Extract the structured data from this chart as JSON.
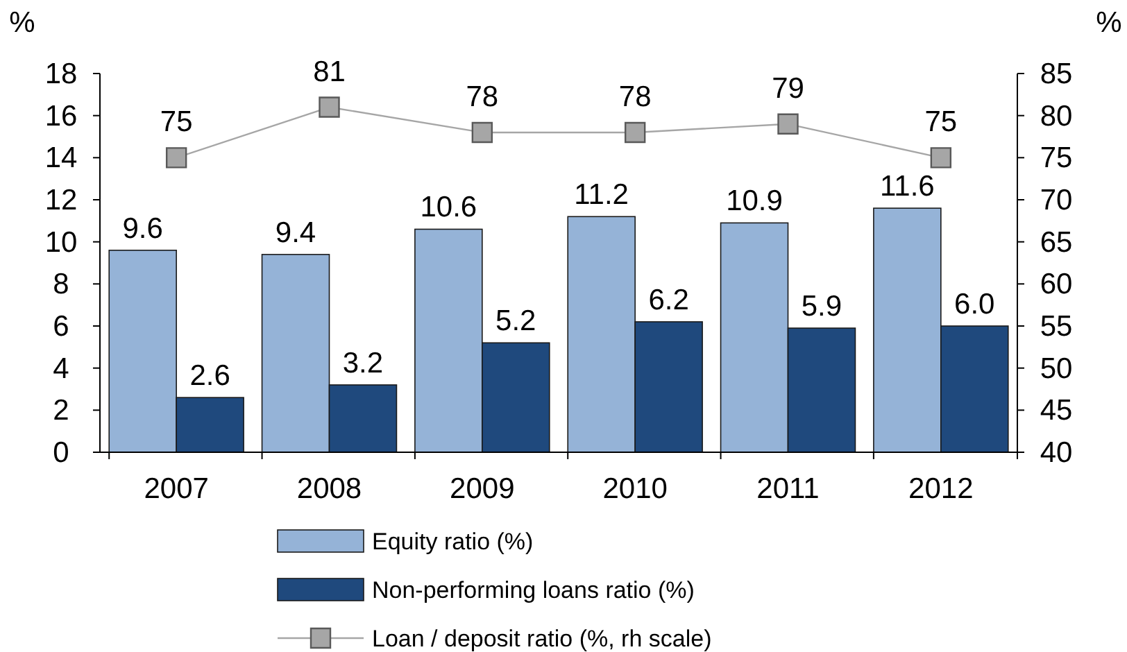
{
  "chart_data": {
    "type": "bar",
    "ylabel": "%",
    "y2label": "%",
    "categories": [
      "2007",
      "2008",
      "2009",
      "2010",
      "2011",
      "2012"
    ],
    "series": [
      {
        "name": "Equity ratio (%)",
        "color": "#95b3d7",
        "values": [
          9.6,
          9.4,
          10.6,
          11.2,
          10.9,
          11.6
        ],
        "value_labels": [
          "9.6",
          "9.4",
          "10.6",
          "11.2",
          "10.9",
          "11.6"
        ]
      },
      {
        "name": "Non-performing loans ratio (%)",
        "color": "#1f497d",
        "values": [
          2.6,
          3.2,
          5.2,
          6.2,
          5.9,
          6.0
        ],
        "value_labels": [
          "2.6",
          "3.2",
          "5.2",
          "6.2",
          "5.9",
          "6.0"
        ]
      },
      {
        "name": "Loan / deposit ratio (%, rh scale)",
        "type": "line",
        "axis": "y2",
        "color": "#a6a6a6",
        "marker": "square",
        "values": [
          75,
          81,
          78,
          78,
          79,
          75
        ],
        "value_labels": [
          "75",
          "81",
          "78",
          "78",
          "79",
          "75"
        ]
      }
    ],
    "ylim": [
      0,
      18
    ],
    "yticks": [
      0,
      2,
      4,
      6,
      8,
      10,
      12,
      14,
      16,
      18
    ],
    "y2lim": [
      40,
      85
    ],
    "y2ticks": [
      40,
      45,
      50,
      55,
      60,
      65,
      70,
      75,
      80,
      85
    ],
    "legend": "bottom",
    "grid": false
  }
}
